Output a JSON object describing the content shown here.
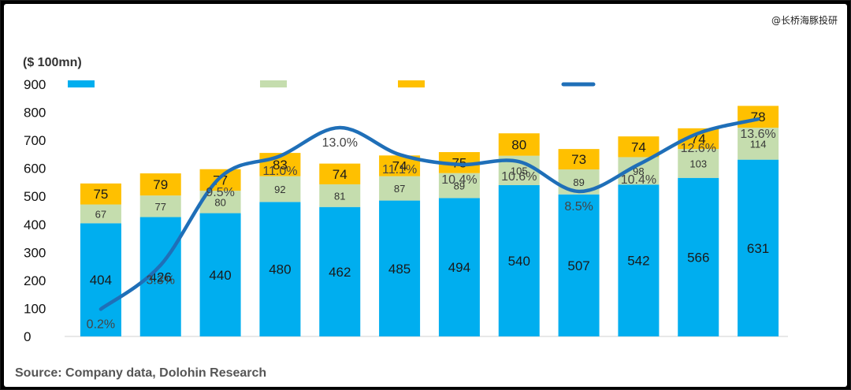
{
  "watermark": "@长桥海豚投研",
  "source": "Source:  Company data,  Dolohin Research",
  "chart_data": {
    "type": "bar",
    "stacked": true,
    "title": "",
    "ylabel": "($ 100mn)",
    "xlabel": "",
    "ylim": [
      0,
      900
    ],
    "yticks": [
      0,
      100,
      200,
      300,
      400,
      500,
      600,
      700,
      800,
      900
    ],
    "categories": [
      "",
      "",
      "",
      "",
      "",
      "",
      "",
      "",
      "",
      "",
      "",
      ""
    ],
    "series": [
      {
        "values": [
          404,
          426,
          440,
          480,
          462,
          485,
          494,
          540,
          507,
          542,
          566,
          631
        ],
        "color": "#00AEEF"
      },
      {
        "values": [
          67,
          77,
          80,
          92,
          81,
          87,
          89,
          105,
          89,
          98,
          103,
          114
        ],
        "color": "#C5DDAE"
      },
      {
        "values": [
          75,
          79,
          77,
          83,
          74,
          74,
          75,
          80,
          73,
          74,
          74,
          78
        ],
        "color": "#FFC000"
      }
    ],
    "line_series": {
      "labels": [
        "0.2%",
        "3.3%",
        "9.5%",
        "11.0%",
        "13.0%",
        "11.1%",
        "10.4%",
        "10.6%",
        "8.5%",
        "10.4%",
        "12.6%",
        "13.6%"
      ],
      "values": [
        0.2,
        3.3,
        9.5,
        11.0,
        13.0,
        11.1,
        10.4,
        10.6,
        8.5,
        10.4,
        12.6,
        13.6
      ],
      "color": "#1F6FB8"
    },
    "legend": [
      "",
      "",
      "",
      ""
    ],
    "legend_position": "top",
    "grid": false
  }
}
